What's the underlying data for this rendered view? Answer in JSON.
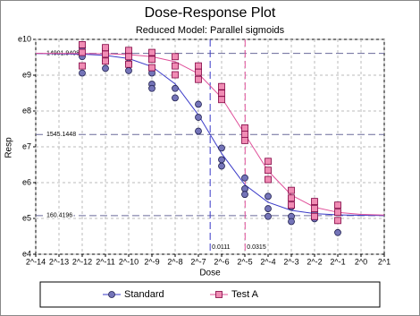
{
  "chart_data": {
    "type": "scatter",
    "title": "Dose-Response Plot",
    "subtitle": "Reduced Model: Parallel sigmoids",
    "x_label": "Dose",
    "y_label": "Resp",
    "log_x": true,
    "log_y": true,
    "grid": true,
    "xlim": [
      6.103515625e-05,
      2
    ],
    "ylim": [
      54.598,
      22026.466
    ],
    "xticks": [
      {
        "value": 6.103515625e-05,
        "label": "2^-14"
      },
      {
        "value": 0.0001220703125,
        "label": "2^-13"
      },
      {
        "value": 0.000244140625,
        "label": "2^-12"
      },
      {
        "value": 0.00048828125,
        "label": "2^-11"
      },
      {
        "value": 0.0009765625,
        "label": "2^-10"
      },
      {
        "value": 0.001953125,
        "label": "2^-9"
      },
      {
        "value": 0.00390625,
        "label": "2^-8"
      },
      {
        "value": 0.0078125,
        "label": "2^-7"
      },
      {
        "value": 0.015625,
        "label": "2^-6"
      },
      {
        "value": 0.03125,
        "label": "2^-5"
      },
      {
        "value": 0.0625,
        "label": "2^-4"
      },
      {
        "value": 0.125,
        "label": "2^-3"
      },
      {
        "value": 0.25,
        "label": "2^-2"
      },
      {
        "value": 0.5,
        "label": "2^-1"
      },
      {
        "value": 1,
        "label": "2^0"
      },
      {
        "value": 2,
        "label": "2^1"
      }
    ],
    "yticks": [
      {
        "value": 54.598,
        "label": "e4"
      },
      {
        "value": 148.413,
        "label": "e5"
      },
      {
        "value": 403.429,
        "label": "e6"
      },
      {
        "value": 1096.633,
        "label": "e7"
      },
      {
        "value": 2980.958,
        "label": "e8"
      },
      {
        "value": 8103.084,
        "label": "e9"
      },
      {
        "value": 22026.466,
        "label": "e10"
      }
    ],
    "reference_y": [
      14901.9408,
      1545.1448,
      160.4196
    ],
    "reference_x": [
      0.0111,
      0.0315
    ],
    "reference_x_colors": [
      "#3a3ac8",
      "#e0509a"
    ],
    "fit_x": [
      6.103515625e-05,
      0.000244140625,
      0.00048828125,
      0.0009765625,
      0.001953125,
      0.00390625,
      0.0078125,
      0.015625,
      0.03125,
      0.0625,
      0.125,
      0.25,
      0.5,
      1,
      2
    ],
    "legend_position": "bottom",
    "series": [
      {
        "name": "Standard",
        "marker": "circle",
        "color": "#7474b8",
        "line_color": "#3a3ac8",
        "x": [
          0.000244140625,
          0.000244140625,
          0.000244140625,
          0.00048828125,
          0.00048828125,
          0.00048828125,
          0.0009765625,
          0.0009765625,
          0.0009765625,
          0.001953125,
          0.001953125,
          0.001953125,
          0.00390625,
          0.00390625,
          0.0078125,
          0.0078125,
          0.0078125,
          0.015625,
          0.015625,
          0.015625,
          0.03125,
          0.03125,
          0.03125,
          0.0625,
          0.0625,
          0.0625,
          0.125,
          0.125,
          0.125,
          0.25,
          0.25,
          0.5
        ],
        "values": [
          17500,
          13600,
          8600,
          16600,
          12000,
          9800,
          15300,
          11400,
          9200,
          8600,
          6300,
          5600,
          5600,
          4300,
          3600,
          2500,
          1700,
          1060,
          765,
          640,
          460,
          340,
          290,
          275,
          195,
          157,
          205,
          157,
          136,
          176,
          147,
          100
        ],
        "fit_values": [
          14880,
          14600,
          14100,
          12900,
          10300,
          6350,
          2670,
          910,
          380,
          233,
          186,
          170,
          164,
          162,
          161
        ]
      },
      {
        "name": "Test A",
        "marker": "square",
        "color": "#f08cb4",
        "line_color": "#e0509a",
        "x": [
          0.000244140625,
          0.000244140625,
          0.000244140625,
          0.00048828125,
          0.00048828125,
          0.00048828125,
          0.0009765625,
          0.0009765625,
          0.0009765625,
          0.001953125,
          0.001953125,
          0.001953125,
          0.00390625,
          0.00390625,
          0.00390625,
          0.0078125,
          0.0078125,
          0.0078125,
          0.015625,
          0.015625,
          0.015625,
          0.03125,
          0.03125,
          0.03125,
          0.0625,
          0.0625,
          0.0625,
          0.125,
          0.125,
          0.125,
          0.25,
          0.25,
          0.25,
          0.5,
          0.5,
          0.5
        ],
        "values": [
          19000,
          15300,
          10500,
          17500,
          14600,
          12000,
          16200,
          13600,
          11000,
          15300,
          12600,
          10000,
          13600,
          10500,
          8200,
          10500,
          8800,
          7200,
          5900,
          4900,
          4100,
          1860,
          1560,
          1310,
          730,
          570,
          440,
          325,
          262,
          215,
          238,
          195,
          157,
          215,
          176,
          140
        ],
        "fit_values": [
          14900,
          14870,
          14740,
          14400,
          13600,
          11800,
          8450,
          4320,
          1560,
          560,
          285,
          203,
          176,
          166,
          163
        ]
      }
    ]
  }
}
